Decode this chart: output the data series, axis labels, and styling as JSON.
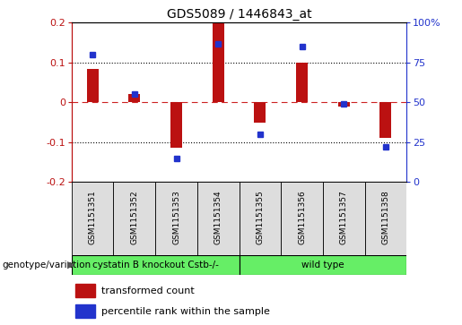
{
  "title": "GDS5089 / 1446843_at",
  "samples": [
    "GSM1151351",
    "GSM1151352",
    "GSM1151353",
    "GSM1151354",
    "GSM1151355",
    "GSM1151356",
    "GSM1151357",
    "GSM1151358"
  ],
  "red_bars": [
    0.085,
    0.02,
    -0.115,
    0.2,
    -0.05,
    0.1,
    -0.01,
    -0.09
  ],
  "blue_dots": [
    80,
    55,
    15,
    87,
    30,
    85,
    49,
    22
  ],
  "groups": [
    {
      "label": "cystatin B knockout Cstb-/-",
      "start": 0,
      "end": 3,
      "color": "#66ee66"
    },
    {
      "label": "wild type",
      "start": 4,
      "end": 7,
      "color": "#66ee66"
    }
  ],
  "group_row_label": "genotype/variation",
  "ylim_left": [
    -0.2,
    0.2
  ],
  "ylim_right": [
    0,
    100
  ],
  "yticks_left": [
    -0.2,
    -0.1,
    0.0,
    0.1,
    0.2
  ],
  "yticks_right": [
    0,
    25,
    50,
    75,
    100
  ],
  "bar_color": "#bb1111",
  "dot_color": "#2233cc",
  "legend_items": [
    {
      "label": "transformed count",
      "color": "#bb1111"
    },
    {
      "label": "percentile rank within the sample",
      "color": "#2233cc"
    }
  ],
  "bg_color": "#ffffff",
  "plot_bg": "#ffffff",
  "n_samples": 8
}
